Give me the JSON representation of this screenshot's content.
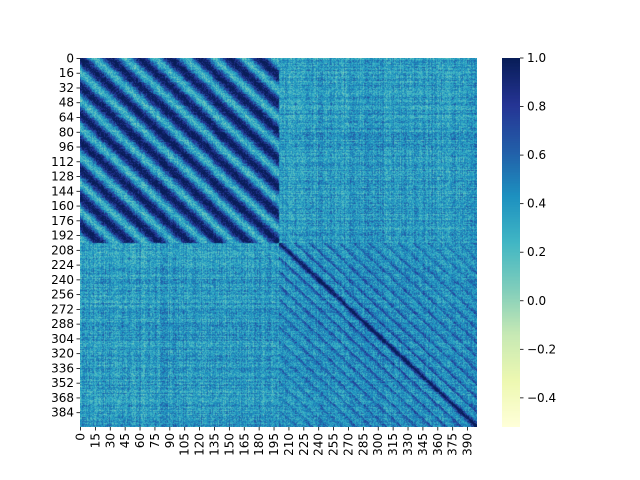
{
  "chart_data": {
    "type": "heatmap",
    "title": "",
    "xlabel": "",
    "ylabel": "",
    "matrix_size": 400,
    "colormap": "YlGnBu",
    "value_range": [
      -0.52,
      1.0
    ],
    "x_tick_labels": [
      "0",
      "15",
      "30",
      "45",
      "60",
      "75",
      "90",
      "105",
      "120",
      "135",
      "150",
      "165",
      "180",
      "195",
      "210",
      "225",
      "240",
      "255",
      "270",
      "285",
      "300",
      "315",
      "330",
      "345",
      "360",
      "375",
      "390"
    ],
    "x_tick_values": [
      0,
      15,
      30,
      45,
      60,
      75,
      90,
      105,
      120,
      135,
      150,
      165,
      180,
      195,
      210,
      225,
      240,
      255,
      270,
      285,
      300,
      315,
      330,
      345,
      360,
      375,
      390
    ],
    "y_tick_labels": [
      "0",
      "16",
      "32",
      "48",
      "64",
      "80",
      "96",
      "112",
      "128",
      "144",
      "160",
      "176",
      "192",
      "208",
      "224",
      "240",
      "256",
      "272",
      "288",
      "304",
      "320",
      "336",
      "352",
      "368",
      "384"
    ],
    "y_tick_values": [
      0,
      16,
      32,
      48,
      64,
      80,
      96,
      112,
      128,
      144,
      160,
      176,
      192,
      208,
      224,
      240,
      256,
      272,
      288,
      304,
      320,
      336,
      352,
      368,
      384
    ],
    "colorbar_ticks": [
      "1.0",
      "0.8",
      "0.6",
      "0.4",
      "0.2",
      "0.0",
      "−0.2",
      "−0.4"
    ],
    "colorbar_tick_values": [
      1.0,
      0.8,
      0.6,
      0.4,
      0.2,
      0.0,
      -0.2,
      -0.4
    ],
    "blocks": [
      {
        "range": [
          0,
          200
        ],
        "pattern": "periodic",
        "period": 30,
        "mean_within": 0.6
      },
      {
        "range": [
          200,
          400
        ],
        "pattern": "diagonal bands",
        "mean_within": 0.35
      }
    ],
    "mean_between_blocks": 0.3,
    "diagonal": 1.0
  }
}
